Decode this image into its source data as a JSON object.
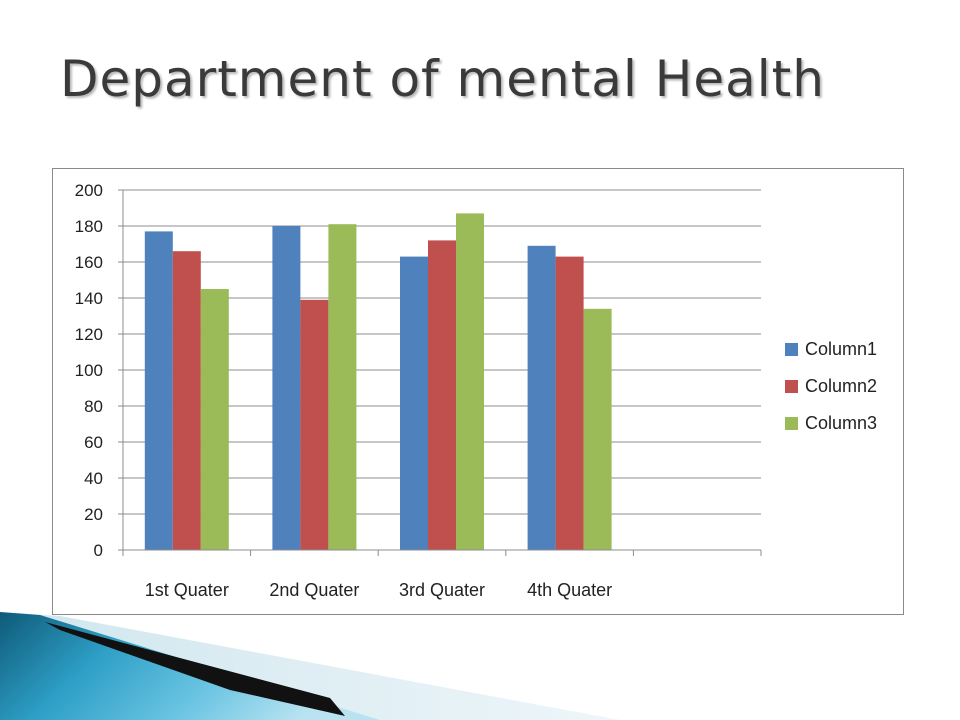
{
  "slide": {
    "title": "Department of mental Health"
  },
  "chart_data": {
    "type": "bar",
    "title": "",
    "xlabel": "",
    "ylabel": "",
    "categories": [
      "1st Quater",
      "2nd Quater",
      "3rd Quater",
      "4th Quater",
      ""
    ],
    "series": [
      {
        "name": "Column1",
        "color": "#4F81BD",
        "values": [
          177,
          180,
          163,
          169,
          null
        ]
      },
      {
        "name": "Column2",
        "color": "#C0504D",
        "values": [
          166,
          139,
          172,
          163,
          null
        ]
      },
      {
        "name": "Column3",
        "color": "#9BBB59",
        "values": [
          145,
          181,
          187,
          134,
          null
        ]
      }
    ],
    "ylim": [
      0,
      200
    ],
    "yticks": [
      0,
      20,
      40,
      60,
      80,
      100,
      120,
      140,
      160,
      180,
      200
    ],
    "grid": true,
    "legend": "right"
  }
}
